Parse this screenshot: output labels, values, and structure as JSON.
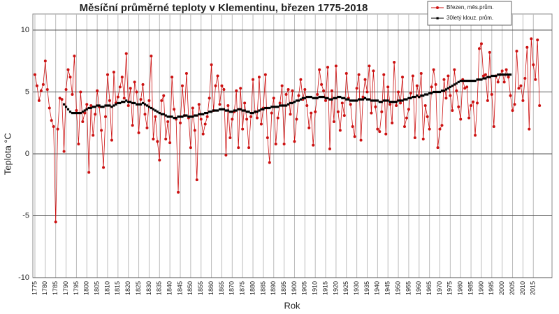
{
  "chart_data": {
    "type": "line",
    "title": "Měsíční průměrné teploty v Klementinu, březen 1775-2018",
    "x_label": "Rok",
    "y_label": "Teplota °C",
    "x": [
      1775,
      1776,
      1777,
      1778,
      1779,
      1780,
      1781,
      1782,
      1783,
      1784,
      1785,
      1786,
      1787,
      1788,
      1789,
      1790,
      1791,
      1792,
      1793,
      1794,
      1795,
      1796,
      1797,
      1798,
      1799,
      1800,
      1801,
      1802,
      1803,
      1804,
      1805,
      1806,
      1807,
      1808,
      1809,
      1810,
      1811,
      1812,
      1813,
      1814,
      1815,
      1816,
      1817,
      1818,
      1819,
      1820,
      1821,
      1822,
      1823,
      1824,
      1825,
      1826,
      1827,
      1828,
      1829,
      1830,
      1831,
      1832,
      1833,
      1834,
      1835,
      1836,
      1837,
      1838,
      1839,
      1840,
      1841,
      1842,
      1843,
      1844,
      1845,
      1846,
      1847,
      1848,
      1849,
      1850,
      1851,
      1852,
      1853,
      1854,
      1855,
      1856,
      1857,
      1858,
      1859,
      1860,
      1861,
      1862,
      1863,
      1864,
      1865,
      1866,
      1867,
      1868,
      1869,
      1870,
      1871,
      1872,
      1873,
      1874,
      1875,
      1876,
      1877,
      1878,
      1879,
      1880,
      1881,
      1882,
      1883,
      1884,
      1885,
      1886,
      1887,
      1888,
      1889,
      1890,
      1891,
      1892,
      1893,
      1894,
      1895,
      1896,
      1897,
      1898,
      1899,
      1900,
      1901,
      1902,
      1903,
      1904,
      1905,
      1906,
      1907,
      1908,
      1909,
      1910,
      1911,
      1912,
      1913,
      1914,
      1915,
      1916,
      1917,
      1918,
      1919,
      1920,
      1921,
      1922,
      1923,
      1924,
      1925,
      1926,
      1927,
      1928,
      1929,
      1930,
      1931,
      1932,
      1933,
      1934,
      1935,
      1936,
      1937,
      1938,
      1939,
      1940,
      1941,
      1942,
      1943,
      1944,
      1945,
      1946,
      1947,
      1948,
      1949,
      1950,
      1951,
      1952,
      1953,
      1954,
      1955,
      1956,
      1957,
      1958,
      1959,
      1960,
      1961,
      1962,
      1963,
      1964,
      1965,
      1966,
      1967,
      1968,
      1969,
      1970,
      1971,
      1972,
      1973,
      1974,
      1975,
      1976,
      1977,
      1978,
      1979,
      1980,
      1981,
      1982,
      1983,
      1984,
      1985,
      1986,
      1987,
      1988,
      1989,
      1990,
      1991,
      1992,
      1993,
      1994,
      1995,
      1996,
      1997,
      1998,
      1999,
      2000,
      2001,
      2002,
      2003,
      2004,
      2005,
      2006,
      2007,
      2008,
      2009,
      2010,
      2011,
      2012,
      2013,
      2014,
      2015,
      2016,
      2017,
      2018
    ],
    "series": [
      {
        "name": "Březen, měs.prům.",
        "color": "#cc1111",
        "marker": "circle",
        "values": [
          6.4,
          5.5,
          4.3,
          5.1,
          5.6,
          7.5,
          5.2,
          3.7,
          2.7,
          2.2,
          -5.5,
          2.0,
          4.5,
          4.4,
          0.2,
          5.2,
          6.8,
          6.2,
          4.8,
          7.9,
          3.5,
          0.8,
          5.0,
          2.6,
          3.3,
          4.0,
          -1.5,
          3.9,
          1.5,
          3.2,
          5.1,
          3.8,
          1.9,
          -1.1,
          3.0,
          6.4,
          4.3,
          1.1,
          6.6,
          4.1,
          4.6,
          5.4,
          6.2,
          4.5,
          8.1,
          3.9,
          5.3,
          2.3,
          5.8,
          5.0,
          1.7,
          4.4,
          5.6,
          3.2,
          2.1,
          4.3,
          7.9,
          1.2,
          3.0,
          1.0,
          -0.5,
          4.3,
          4.7,
          1.2,
          2.6,
          0.9,
          6.2,
          3.6,
          2.8,
          -3.1,
          2.5,
          5.5,
          3.1,
          6.5,
          2.9,
          0.5,
          3.7,
          1.9,
          -2.1,
          4.0,
          2.8,
          1.6,
          2.4,
          3.0,
          4.5,
          7.2,
          3.5,
          5.5,
          6.3,
          4.0,
          5.5,
          5.2,
          -0.1,
          3.9,
          1.3,
          2.8,
          3.4,
          5.1,
          0.5,
          5.3,
          2.0,
          4.1,
          2.8,
          0.5,
          3.0,
          6.0,
          3.4,
          2.9,
          6.2,
          2.4,
          3.7,
          6.4,
          1.3,
          -0.7,
          3.3,
          4.5,
          0.8,
          2.9,
          4.1,
          5.5,
          0.8,
          4.8,
          5.2,
          3.2,
          5.1,
          1.0,
          2.8,
          4.7,
          6.0,
          4.4,
          5.2,
          3.9,
          2.1,
          3.3,
          0.7,
          3.4,
          4.8,
          6.8,
          5.6,
          5.1,
          4.3,
          7.0,
          0.4,
          5.1,
          2.6,
          7.1,
          3.4,
          1.9,
          4.1,
          3.1,
          6.5,
          4.5,
          4.0,
          2.2,
          1.4,
          5.3,
          6.4,
          1.1,
          4.6,
          6.0,
          5.0,
          7.1,
          3.3,
          6.7,
          3.8,
          2.0,
          1.8,
          3.4,
          6.4,
          1.6,
          5.4,
          4.0,
          2.5,
          7.4,
          3.9,
          5.0,
          4.1,
          6.2,
          2.2,
          2.9,
          3.6,
          4.9,
          6.3,
          1.3,
          5.5,
          4.6,
          6.5,
          1.2,
          3.9,
          3.0,
          2.0,
          5.4,
          6.8,
          5.6,
          0.5,
          2.0,
          2.3,
          6.0,
          4.5,
          6.3,
          4.7,
          3.5,
          6.8,
          5.1,
          3.8,
          2.8,
          6.0,
          5.3,
          5.4,
          2.9,
          3.9,
          4.2,
          1.5,
          4.1,
          8.5,
          8.9,
          6.3,
          6.4,
          4.3,
          8.2,
          4.8,
          2.2,
          6.3,
          5.8,
          6.4,
          6.7,
          5.8,
          6.8,
          6.2,
          4.7,
          3.5,
          4.0,
          8.3,
          5.3,
          5.5,
          4.3,
          6.1,
          8.6,
          2.0,
          9.3,
          7.2,
          6.0,
          9.2,
          3.9
        ]
      },
      {
        "name": "30letý klouz. prům.",
        "color": "#000000",
        "marker": "square",
        "values": [
          null,
          null,
          null,
          null,
          null,
          null,
          null,
          null,
          null,
          null,
          null,
          null,
          null,
          null,
          4.0,
          3.8,
          3.6,
          3.4,
          3.3,
          3.3,
          3.3,
          3.3,
          3.3,
          3.4,
          3.5,
          3.6,
          3.7,
          3.7,
          3.8,
          3.8,
          3.9,
          3.9,
          3.8,
          3.8,
          3.9,
          3.9,
          3.9,
          3.8,
          3.9,
          4.0,
          4.1,
          4.1,
          4.2,
          4.2,
          4.3,
          4.2,
          4.2,
          4.1,
          4.1,
          4.0,
          4.0,
          4.0,
          4.1,
          4.0,
          3.9,
          3.8,
          3.7,
          3.6,
          3.5,
          3.4,
          3.3,
          3.2,
          3.2,
          3.1,
          3.0,
          3.0,
          3.0,
          2.9,
          2.9,
          3.0,
          3.0,
          3.0,
          3.1,
          3.1,
          3.0,
          3.0,
          3.0,
          3.1,
          3.1,
          3.2,
          3.2,
          3.2,
          3.3,
          3.3,
          3.4,
          3.4,
          3.5,
          3.5,
          3.5,
          3.6,
          3.6,
          3.6,
          3.5,
          3.5,
          3.4,
          3.4,
          3.5,
          3.5,
          3.6,
          3.6,
          3.5,
          3.5,
          3.4,
          3.4,
          3.3,
          3.3,
          3.4,
          3.4,
          3.5,
          3.6,
          3.6,
          3.7,
          3.7,
          3.7,
          3.8,
          3.8,
          3.8,
          3.8,
          3.9,
          3.9,
          3.9,
          3.9,
          4.0,
          4.1,
          4.1,
          4.2,
          4.3,
          4.3,
          4.4,
          4.5,
          4.5,
          4.6,
          4.6,
          4.6,
          4.5,
          4.5,
          4.5,
          4.6,
          4.6,
          4.6,
          4.5,
          4.5,
          4.4,
          4.4,
          4.5,
          4.5,
          4.6,
          4.6,
          4.5,
          4.5,
          4.4,
          4.4,
          4.3,
          4.3,
          4.3,
          4.3,
          4.4,
          4.4,
          4.4,
          4.5,
          4.4,
          4.4,
          4.3,
          4.3,
          4.3,
          4.3,
          4.2,
          4.2,
          4.3,
          4.3,
          4.3,
          4.2,
          4.2,
          4.2,
          4.2,
          4.3,
          4.3,
          4.3,
          4.4,
          4.4,
          4.5,
          4.5,
          4.6,
          4.6,
          4.7,
          4.6,
          4.7,
          4.7,
          4.8,
          4.8,
          4.9,
          4.9,
          5.0,
          5.0,
          5.0,
          5.0,
          5.1,
          5.1,
          5.2,
          5.3,
          5.4,
          5.5,
          5.6,
          5.7,
          5.8,
          5.9,
          5.9,
          5.9,
          5.9,
          5.9,
          5.9,
          5.9,
          5.9,
          6.0,
          6.0,
          6.0,
          6.1,
          6.1,
          6.2,
          6.2,
          6.3,
          6.3,
          6.3,
          6.4,
          6.4,
          6.4,
          6.4,
          6.4,
          6.4,
          6.4,
          null,
          null,
          null,
          null,
          null,
          null,
          null,
          null,
          null,
          null,
          null,
          null,
          null,
          null
        ]
      }
    ],
    "xlim": [
      1774,
      2024
    ],
    "ylim": [
      -10,
      10
    ],
    "xticks": [
      1775,
      1780,
      1785,
      1790,
      1795,
      1800,
      1805,
      1810,
      1815,
      1820,
      1825,
      1830,
      1835,
      1840,
      1845,
      1850,
      1855,
      1860,
      1865,
      1870,
      1875,
      1880,
      1885,
      1890,
      1895,
      1900,
      1905,
      1910,
      1915,
      1920,
      1925,
      1930,
      1935,
      1940,
      1945,
      1950,
      1955,
      1960,
      1965,
      1970,
      1975,
      1980,
      1985,
      1990,
      1995,
      2000,
      2005,
      2010,
      2015
    ],
    "yticks": [
      10,
      5,
      0,
      -5,
      -10
    ],
    "grid": true,
    "legend": "upper right"
  }
}
